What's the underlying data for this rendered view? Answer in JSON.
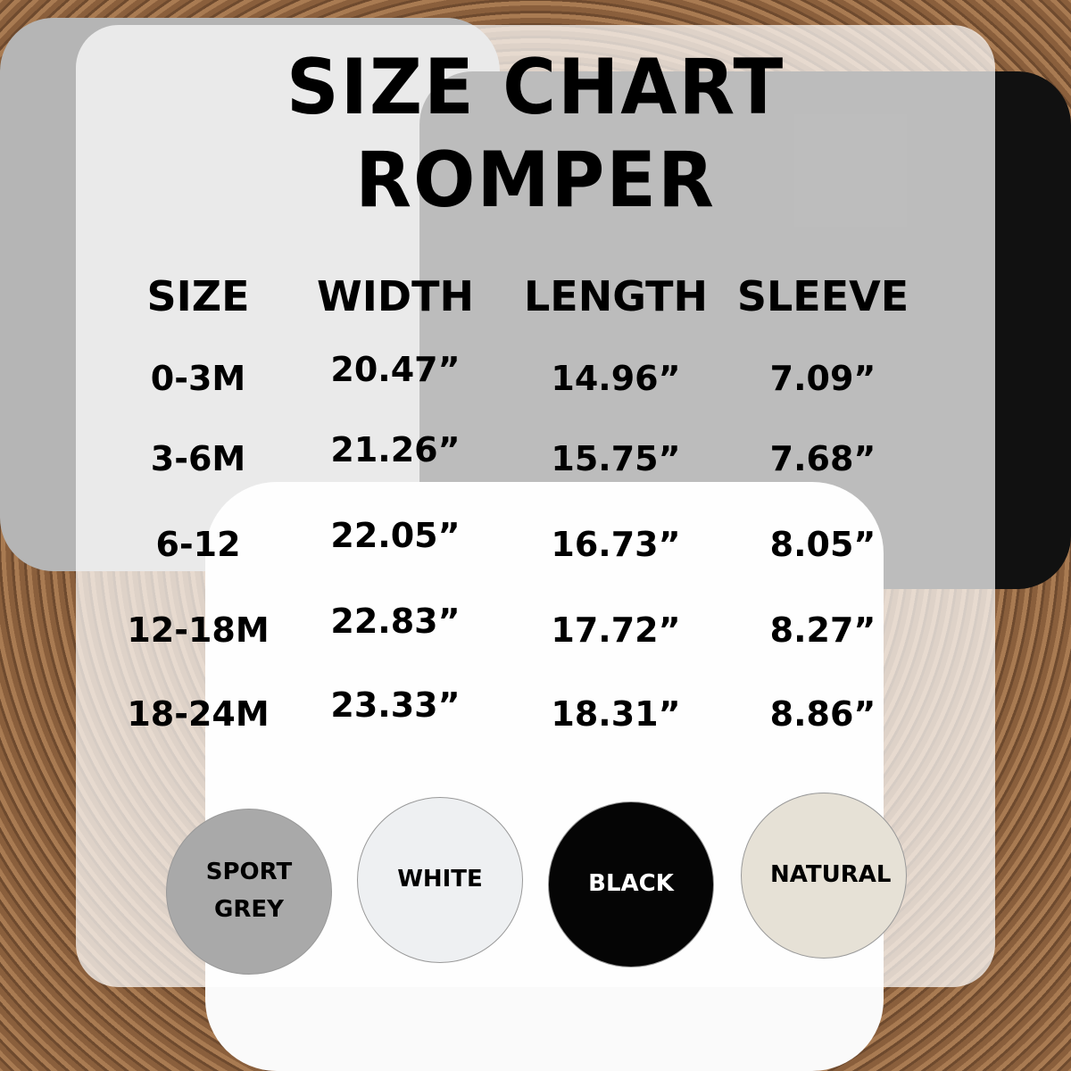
{
  "title": {
    "line1": "SIZE CHART",
    "line2": "ROMPER"
  },
  "table": {
    "headers": [
      "SIZE",
      "WIDTH",
      "LENGTH",
      "SLEEVE"
    ],
    "rows": [
      [
        "0-3M",
        "20.47”",
        "14.96”",
        "7.09”"
      ],
      [
        "3-6M",
        "21.26”",
        "15.75”",
        "7.68”"
      ],
      [
        "6-12",
        "22.05”",
        "16.73”",
        "8.05”"
      ],
      [
        "12-18M",
        "22.83”",
        "17.72”",
        "8.27”"
      ],
      [
        "18-24M",
        "23.33”",
        "18.31”",
        "8.86”"
      ]
    ]
  },
  "colors": [
    {
      "label": "SPORT GREY",
      "hex": "#a9a9a9",
      "text": "#000000"
    },
    {
      "label": "WHITE",
      "hex": "#eef0f2",
      "text": "#000000"
    },
    {
      "label": "BLACK",
      "hex": "#050505",
      "text": "#ffffff"
    },
    {
      "label": "NATURAL",
      "hex": "#e6e1d6",
      "text": "#000000"
    }
  ]
}
